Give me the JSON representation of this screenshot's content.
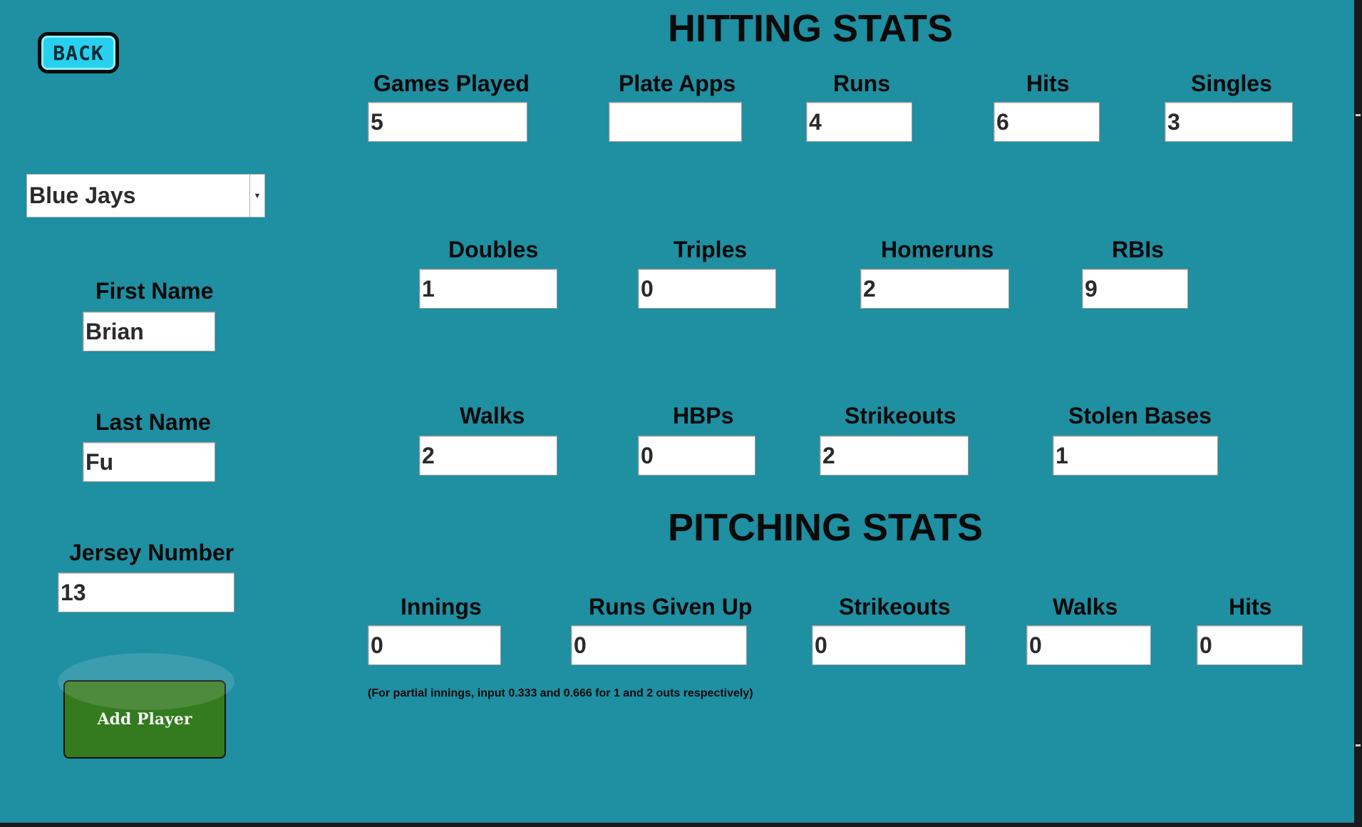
{
  "back_label": "BACK",
  "team": {
    "selected": "Blue Jays"
  },
  "player": {
    "first_name_label": "First Name",
    "first_name": "Brian",
    "last_name_label": "Last Name",
    "last_name": "Fu",
    "jersey_label": "Jersey Number",
    "jersey": "13"
  },
  "add_player_label": "Add Player",
  "hitting": {
    "title": "HITTING STATS",
    "games_played_label": "Games Played",
    "games_played": "5",
    "plate_apps_label": "Plate Apps",
    "plate_apps": "",
    "runs_label": "Runs",
    "runs": "4",
    "hits_label": "Hits",
    "hits": "6",
    "singles_label": "Singles",
    "singles": "3",
    "doubles_label": "Doubles",
    "doubles": "1",
    "triples_label": "Triples",
    "triples": "0",
    "homeruns_label": "Homeruns",
    "homeruns": "2",
    "rbis_label": "RBIs",
    "rbis": "9",
    "walks_label": "Walks",
    "walks": "2",
    "hbps_label": "HBPs",
    "hbps": "0",
    "strikeouts_label": "Strikeouts",
    "strikeouts": "2",
    "stolen_bases_label": "Stolen Bases",
    "stolen_bases": "1"
  },
  "pitching": {
    "title": "PITCHING STATS",
    "innings_label": "Innings",
    "innings": "0",
    "runs_given_up_label": "Runs Given Up",
    "runs_given_up": "0",
    "strikeouts_label": "Strikeouts",
    "strikeouts": "0",
    "walks_label": "Walks",
    "walks": "0",
    "hits_label": "Hits",
    "hits": "0",
    "note": "(For partial innings, input 0.333 and 0.666 for 1 and 2 outs respectively)"
  }
}
